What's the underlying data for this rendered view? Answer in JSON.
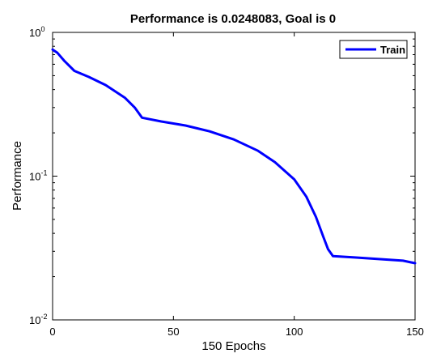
{
  "chart_data": {
    "type": "line",
    "title": "Performance is 0.0248083, Goal is 0",
    "xlabel": "150 Epochs",
    "ylabel": "Performance",
    "xlim": [
      0,
      150
    ],
    "ylim": [
      0.01,
      1
    ],
    "yscale": "log",
    "grid": false,
    "legend_position": "top-right",
    "x_ticks": [
      0,
      50,
      100,
      150
    ],
    "x_tick_labels": [
      "0",
      "50",
      "100",
      "150"
    ],
    "y_ticks": [
      {
        "value": 1,
        "base": "10",
        "exp": "0"
      },
      {
        "value": 0.1,
        "base": "10",
        "exp": "-1"
      },
      {
        "value": 0.01,
        "base": "10",
        "exp": "-2"
      }
    ],
    "series": [
      {
        "name": "Train",
        "color": "#0000ff",
        "x": [
          0,
          2,
          5,
          9,
          15,
          22,
          30,
          34,
          37,
          45,
          55,
          65,
          75,
          85,
          92,
          100,
          105,
          109,
          112,
          114,
          116,
          125,
          135,
          145,
          150
        ],
        "y": [
          0.76,
          0.72,
          0.63,
          0.54,
          0.49,
          0.43,
          0.35,
          0.3,
          0.255,
          0.24,
          0.225,
          0.205,
          0.18,
          0.15,
          0.125,
          0.095,
          0.072,
          0.052,
          0.038,
          0.031,
          0.0278,
          0.0272,
          0.0265,
          0.0258,
          0.0248
        ]
      }
    ]
  }
}
